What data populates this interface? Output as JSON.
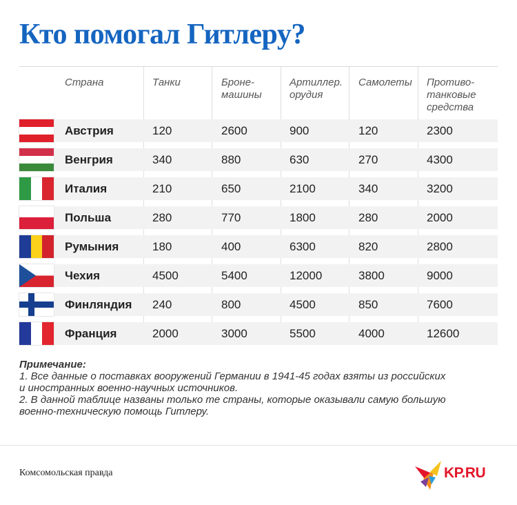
{
  "title": "Кто помогал Гитлеру?",
  "columns": {
    "country": "Страна",
    "tanks": "Танки",
    "armored": [
      "Броне-",
      "машины"
    ],
    "artillery": [
      "Артиллер.",
      "орудия"
    ],
    "planes": "Самолеты",
    "antitank": [
      "Противо-",
      "танковые",
      "средства"
    ]
  },
  "rows": [
    {
      "country": "Австрия",
      "flag": "austria-flag",
      "values": [
        "120",
        "2600",
        "900",
        "120",
        "2300"
      ]
    },
    {
      "country": "Венгрия",
      "flag": "hungary-flag",
      "values": [
        "340",
        "880",
        "630",
        "270",
        "4300"
      ]
    },
    {
      "country": "Италия",
      "flag": "italy-flag",
      "values": [
        "210",
        "650",
        "2100",
        "340",
        "3200"
      ]
    },
    {
      "country": "Польша",
      "flag": "poland-flag",
      "values": [
        "280",
        "770",
        "1800",
        "280",
        "2000"
      ]
    },
    {
      "country": "Румыния",
      "flag": "romania-flag",
      "values": [
        "180",
        "400",
        "6300",
        "820",
        "2800"
      ]
    },
    {
      "country": "Чехия",
      "flag": "czech-flag",
      "values": [
        "4500",
        "5400",
        "12000",
        "3800",
        "9000"
      ]
    },
    {
      "country": "Финляндия",
      "flag": "finland-flag",
      "values": [
        "240",
        "800",
        "4500",
        "850",
        "7600"
      ]
    },
    {
      "country": "Франция",
      "flag": "france-flag",
      "values": [
        "2000",
        "3000",
        "5500",
        "4000",
        "12600"
      ]
    }
  ],
  "notes": {
    "heading": "Примечание:",
    "lines": [
      "1. Все данные о поставках вооружений Германии в 1941-45 годах взяты из российских",
      "и иностранных военно-научных источников.",
      "2. В данной таблице названы только те страны, которые оказывали самую большую",
      "военно-техническую помощь Гитлеру."
    ]
  },
  "footer": {
    "source": "Комсомольская правда",
    "logo_text": "KP.RU"
  },
  "colors": {
    "title": "#1565c0",
    "logo": "#e3162a"
  }
}
